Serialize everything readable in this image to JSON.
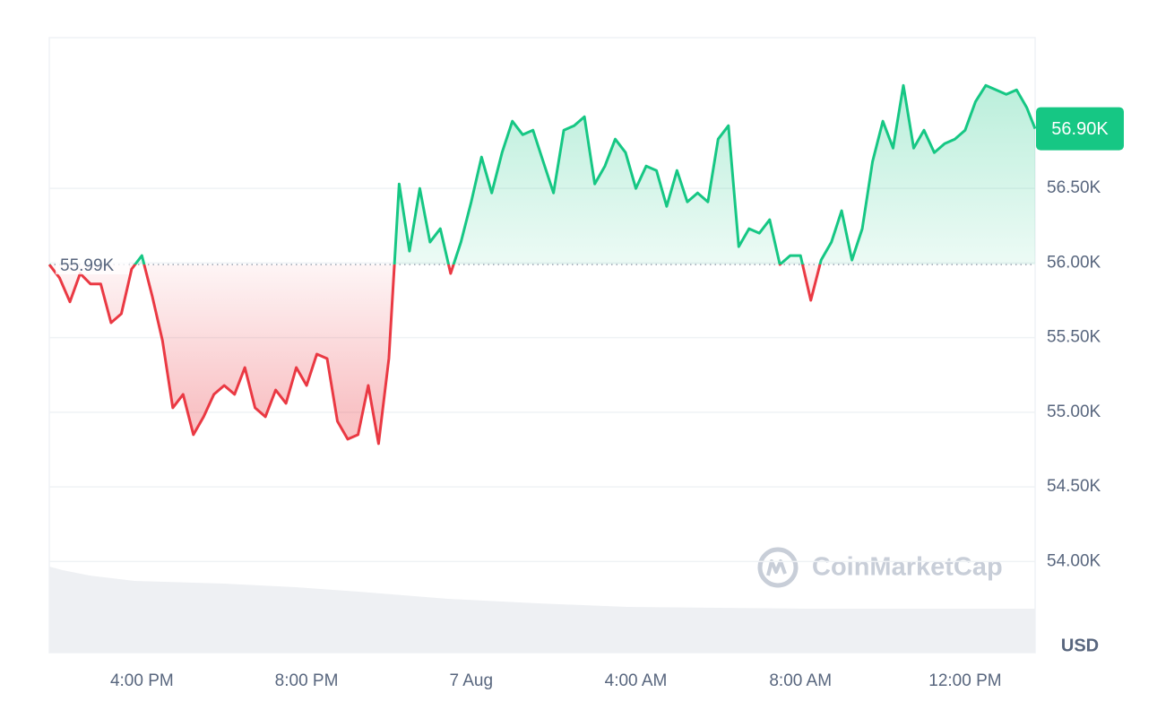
{
  "chart_data": {
    "type": "line",
    "x": [
      13.75,
      14,
      14.25,
      14.5,
      14.75,
      15,
      15.25,
      15.5,
      15.75,
      16,
      16.25,
      16.5,
      16.75,
      17,
      17.25,
      17.5,
      17.75,
      18,
      18.25,
      18.5,
      18.75,
      19,
      19.25,
      19.5,
      19.75,
      20,
      20.25,
      20.5,
      20.75,
      21,
      21.25,
      21.5,
      21.75,
      22,
      22.25,
      22.5,
      22.75,
      23,
      23.25,
      23.5,
      23.75,
      24,
      24.25,
      24.5,
      24.75,
      25,
      25.25,
      25.5,
      25.75,
      26,
      26.25,
      26.5,
      26.75,
      27,
      27.25,
      27.5,
      27.75,
      28,
      28.25,
      28.5,
      28.75,
      29,
      29.25,
      29.5,
      29.75,
      30,
      30.25,
      30.5,
      30.75,
      31,
      31.25,
      31.5,
      31.75,
      32,
      32.25,
      32.5,
      32.75,
      33,
      33.25,
      33.5,
      33.75,
      34,
      34.25,
      34.5,
      34.75,
      35,
      35.25,
      35.5,
      35.75,
      36,
      36.25,
      36.5,
      36.75,
      37,
      37.25,
      37.5,
      37.7
    ],
    "values": [
      55990,
      55900,
      55740,
      55930,
      55860,
      55860,
      55600,
      55660,
      55960,
      56050,
      55780,
      55480,
      55030,
      55120,
      54850,
      54970,
      55120,
      55180,
      55120,
      55300,
      55030,
      54970,
      55150,
      55060,
      55300,
      55180,
      55390,
      55360,
      54940,
      54820,
      54850,
      55180,
      54790,
      55360,
      56530,
      56080,
      56500,
      56140,
      56230,
      55930,
      56140,
      56410,
      56710,
      56470,
      56740,
      56950,
      56860,
      56890,
      56680,
      56470,
      56890,
      56920,
      56980,
      56530,
      56650,
      56830,
      56740,
      56500,
      56650,
      56620,
      56380,
      56620,
      56410,
      56470,
      56410,
      56830,
      56920,
      56110,
      56230,
      56200,
      56290,
      55990,
      56050,
      56050,
      55750,
      56020,
      56140,
      56350,
      56020,
      56230,
      56680,
      56950,
      56770,
      57190,
      56770,
      56890,
      56740,
      56800,
      56830,
      56890,
      57080,
      57190,
      57160,
      57130,
      57160,
      57040,
      56900
    ],
    "colors": {
      "up": "#16c784",
      "down": "#ea3943"
    },
    "baseline": 55990,
    "baseline_label": "55.99K",
    "last_value": 56900,
    "last_label": "56.90K",
    "xlim": [
      13.75,
      37.7
    ],
    "xticks": [
      {
        "value": 16,
        "label": "4:00 PM"
      },
      {
        "value": 20,
        "label": "8:00 PM"
      },
      {
        "value": 24,
        "label": "7 Aug"
      },
      {
        "value": 28,
        "label": "4:00 AM"
      },
      {
        "value": 32,
        "label": "8:00 AM"
      },
      {
        "value": 36,
        "label": "12:00 PM"
      }
    ],
    "ylim": [
      53390,
      57510
    ],
    "yticks": [
      {
        "value": 54000,
        "label": "54.00K"
      },
      {
        "value": 54500,
        "label": "54.50K"
      },
      {
        "value": 55000,
        "label": "55.00K"
      },
      {
        "value": 55500,
        "label": "55.50K"
      },
      {
        "value": 56000,
        "label": "56.00K"
      },
      {
        "value": 56500,
        "label": "56.50K"
      }
    ],
    "grid": true,
    "currency": "USD",
    "watermark": "CoinMarketCap"
  }
}
